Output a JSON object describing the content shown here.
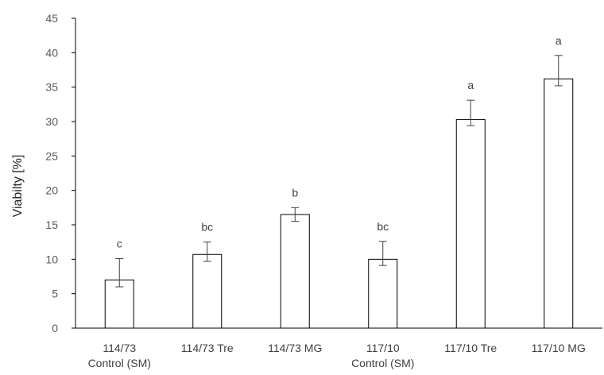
{
  "chart_data": {
    "type": "bar",
    "ylabel": "Viabilty [%]",
    "ylim": [
      0,
      45
    ],
    "yticks": [
      0,
      5,
      10,
      15,
      20,
      25,
      30,
      35,
      40,
      45
    ],
    "grid": false,
    "legend": "none",
    "categories": [
      [
        "114/73",
        "Control (SM)"
      ],
      [
        "114/73 Tre"
      ],
      [
        "114/73 MG"
      ],
      [
        "117/10",
        "Control (SM)"
      ],
      [
        "117/10 Tre"
      ],
      [
        "117/10 MG"
      ]
    ],
    "series": [
      {
        "values": [
          7.0,
          10.7,
          16.5,
          10.0,
          30.3,
          36.2
        ],
        "error_low": [
          6.0,
          9.7,
          15.5,
          9.1,
          29.4,
          35.2
        ],
        "error_high": [
          10.1,
          12.5,
          17.5,
          12.6,
          33.1,
          39.6
        ]
      }
    ],
    "annotations": [
      "c",
      "bc",
      "b",
      "bc",
      "a",
      "a"
    ],
    "colors": {
      "bar_fill": "#ffffff",
      "bar_stroke": "#000000",
      "axis": "#000000",
      "error_bar": "#404040"
    }
  }
}
